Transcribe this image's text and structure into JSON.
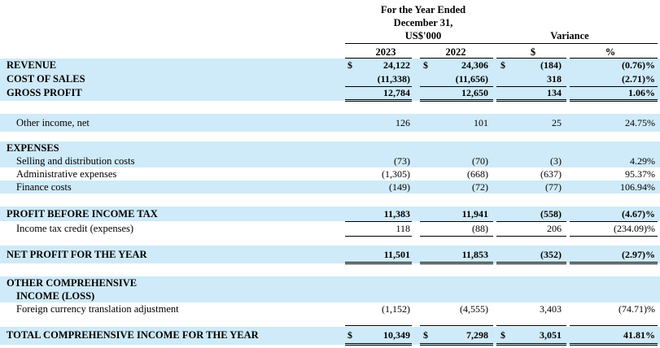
{
  "header": {
    "period_line1": "For the Year Ended",
    "period_line2": "December 31,",
    "period_line3": "US$'000",
    "variance": "Variance",
    "col_2023": "2023",
    "col_2022": "2022",
    "col_var_abs": "$",
    "col_var_pct": "%"
  },
  "rows": {
    "revenue": {
      "label": "REVENUE",
      "cur": "$",
      "v2023": "24,122",
      "v2022": "24,306",
      "var": "(184)",
      "pct": "(0.76)%"
    },
    "cost_of_sales": {
      "label": "COST OF SALES",
      "v2023": "(11,338)",
      "v2022": "(11,656)",
      "var": "318",
      "pct": "(2.71)%"
    },
    "gross_profit": {
      "label": "GROSS PROFIT",
      "v2023": "12,784",
      "v2022": "12,650",
      "var": "134",
      "pct": "1.06%"
    },
    "other_income": {
      "label": "Other income, net",
      "v2023": "126",
      "v2022": "101",
      "var": "25",
      "pct": "24.75%"
    },
    "expenses": {
      "label": "EXPENSES"
    },
    "selling": {
      "label": "Selling and distribution costs",
      "v2023": "(73)",
      "v2022": "(70)",
      "var": "(3)",
      "pct": "4.29%"
    },
    "admin": {
      "label": "Administrative expenses",
      "v2023": "(1,305)",
      "v2022": "(668)",
      "var": "(637)",
      "pct": "95.37%"
    },
    "finance": {
      "label": "Finance costs",
      "v2023": "(149)",
      "v2022": "(72)",
      "var": "(77)",
      "pct": "106.94%"
    },
    "pbt": {
      "label": "PROFIT BEFORE INCOME TAX",
      "v2023": "11,383",
      "v2022": "11,941",
      "var": "(558)",
      "pct": "(4.67)%"
    },
    "tax": {
      "label": "Income tax credit (expenses)",
      "v2023": "118",
      "v2022": "(88)",
      "var": "206",
      "pct": "(234.09)%"
    },
    "net_profit": {
      "label": "NET PROFIT FOR THE YEAR",
      "v2023": "11,501",
      "v2022": "11,853",
      "var": "(352)",
      "pct": "(2.97)%"
    },
    "oci": {
      "label_line1": "OTHER COMPREHENSIVE",
      "label_line2": "INCOME (LOSS)"
    },
    "fx": {
      "label": "Foreign currency translation adjustment",
      "v2023": "(1,152)",
      "v2022": "(4,555)",
      "var": "3,403",
      "pct": "(74.71)%"
    },
    "total": {
      "label": "TOTAL COMPREHENSIVE INCOME FOR THE YEAR",
      "cur": "$",
      "v2023": "10,349",
      "v2022": "7,298",
      "var": "3,051",
      "pct": "41.81%"
    }
  },
  "colors": {
    "band": "#cfeaf8"
  }
}
